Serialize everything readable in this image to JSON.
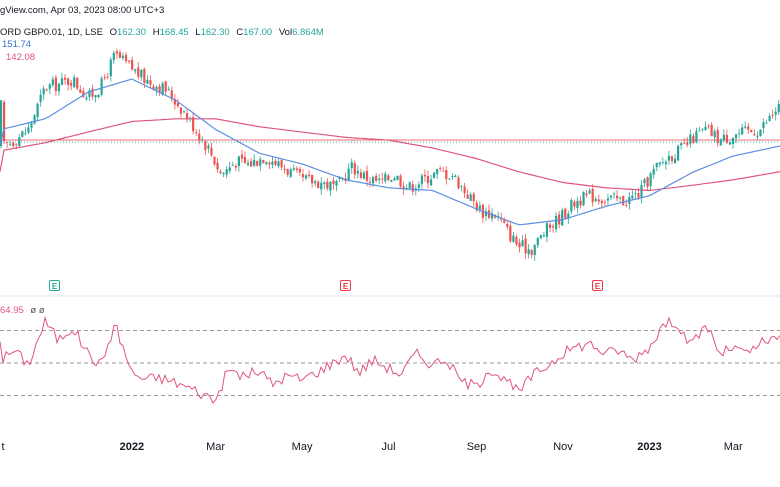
{
  "header": {
    "published": "gView.com, Apr 03, 2023 08:00 UTC+3",
    "symbol": "ORD GBP0.01, 1D, LSE",
    "open_label": "O",
    "open": "162.30",
    "high_label": "H",
    "high": "168.45",
    "low_label": "L",
    "low": "162.30",
    "close_label": "C",
    "close": "167.00",
    "vol_label": "Vol",
    "vol": "6.864M",
    "ma_fast": "151.74",
    "ma_slow": "142.08",
    "rsi_value": "64.95",
    "rsi_extra": "ø ø"
  },
  "events": [
    {
      "label": "E",
      "kind": "earnings"
    },
    {
      "label": "E",
      "kind": "dividend"
    },
    {
      "label": "E",
      "kind": "dividend"
    }
  ],
  "x_axis_labels": [
    {
      "text": "t",
      "bold": false
    },
    {
      "text": "2022",
      "bold": true
    },
    {
      "text": "Mar",
      "bold": false
    },
    {
      "text": "May",
      "bold": false
    },
    {
      "text": "Jul",
      "bold": false
    },
    {
      "text": "Sep",
      "bold": false
    },
    {
      "text": "Nov",
      "bold": false
    },
    {
      "text": "2023",
      "bold": true
    },
    {
      "text": "Mar",
      "bold": false
    }
  ],
  "colors": {
    "up": "#26a69a",
    "down": "#ef5350",
    "ma_fast": "#5b8fe0",
    "ma_slow": "#e0567a",
    "rsi": "#e0567a",
    "level": "#999999"
  },
  "chart_data": {
    "type": "candlestick",
    "price_axis": {
      "min": 102,
      "max": 200
    },
    "anchors": [
      [
        "2021-10-01",
        151
      ],
      [
        "2021-10-10",
        154
      ],
      [
        "2021-10-20",
        158
      ],
      [
        "2021-11-01",
        174
      ],
      [
        "2021-11-10",
        175
      ],
      [
        "2021-11-20",
        177
      ],
      [
        "2021-12-01",
        170
      ],
      [
        "2021-12-10",
        174
      ],
      [
        "2021-12-20",
        186
      ],
      [
        "2022-01-01",
        181
      ],
      [
        "2022-01-10",
        177
      ],
      [
        "2022-01-25",
        173
      ],
      [
        "2022-02-05",
        166
      ],
      [
        "2022-02-15",
        158
      ],
      [
        "2022-02-25",
        150
      ],
      [
        "2022-03-05",
        141
      ],
      [
        "2022-03-15",
        146
      ],
      [
        "2022-03-25",
        145
      ],
      [
        "2022-04-05",
        148
      ],
      [
        "2022-04-20",
        143
      ],
      [
        "2022-05-01",
        139
      ],
      [
        "2022-05-15",
        138
      ],
      [
        "2022-05-25",
        136
      ],
      [
        "2022-06-05",
        144
      ],
      [
        "2022-06-15",
        140
      ],
      [
        "2022-06-25",
        138
      ],
      [
        "2022-07-05",
        141
      ],
      [
        "2022-07-15",
        136
      ],
      [
        "2022-07-25",
        139
      ],
      [
        "2022-08-05",
        142
      ],
      [
        "2022-08-15",
        141
      ],
      [
        "2022-08-25",
        134
      ],
      [
        "2022-09-05",
        127
      ],
      [
        "2022-09-15",
        126
      ],
      [
        "2022-09-25",
        118
      ],
      [
        "2022-10-01",
        114
      ],
      [
        "2022-10-10",
        113
      ],
      [
        "2022-10-20",
        120
      ],
      [
        "2022-11-01",
        126
      ],
      [
        "2022-11-10",
        131
      ],
      [
        "2022-11-20",
        133
      ],
      [
        "2022-12-01",
        132
      ],
      [
        "2022-12-15",
        131
      ],
      [
        "2022-12-25",
        134
      ],
      [
        "2023-01-05",
        143
      ],
      [
        "2023-01-15",
        148
      ],
      [
        "2023-01-25",
        151
      ],
      [
        "2023-02-01",
        155
      ],
      [
        "2023-02-10",
        158
      ],
      [
        "2023-02-20",
        154
      ],
      [
        "2023-03-01",
        156
      ],
      [
        "2023-03-10",
        157
      ],
      [
        "2023-03-20",
        158
      ],
      [
        "2023-04-03",
        167
      ]
    ],
    "moving_average_fast": {
      "name": "151.74",
      "points": [
        [
          "2021-10-01",
          158
        ],
        [
          "2021-11-01",
          162
        ],
        [
          "2021-12-01",
          172
        ],
        [
          "2022-01-01",
          177
        ],
        [
          "2022-02-01",
          169
        ],
        [
          "2022-03-01",
          158
        ],
        [
          "2022-04-01",
          149
        ],
        [
          "2022-05-01",
          145
        ],
        [
          "2022-06-01",
          139
        ],
        [
          "2022-07-01",
          136
        ],
        [
          "2022-08-01",
          135
        ],
        [
          "2022-09-01",
          128
        ],
        [
          "2022-10-01",
          122
        ],
        [
          "2022-11-01",
          124
        ],
        [
          "2022-12-01",
          129
        ],
        [
          "2023-01-01",
          133
        ],
        [
          "2023-02-01",
          142
        ],
        [
          "2023-03-01",
          148
        ],
        [
          "2023-04-03",
          151.74
        ]
      ]
    },
    "moving_average_slow": {
      "name": "142.08",
      "points": [
        [
          "2021-10-01",
          150
        ],
        [
          "2021-11-01",
          153
        ],
        [
          "2021-12-01",
          157
        ],
        [
          "2022-01-01",
          161
        ],
        [
          "2022-02-01",
          162
        ],
        [
          "2022-03-01",
          162
        ],
        [
          "2022-04-01",
          159
        ],
        [
          "2022-05-01",
          157
        ],
        [
          "2022-06-01",
          155
        ],
        [
          "2022-07-01",
          154
        ],
        [
          "2022-08-01",
          151
        ],
        [
          "2022-09-01",
          147
        ],
        [
          "2022-10-01",
          142
        ],
        [
          "2022-11-01",
          138
        ],
        [
          "2022-12-01",
          136
        ],
        [
          "2023-01-01",
          135
        ],
        [
          "2023-02-01",
          137
        ],
        [
          "2023-03-01",
          139
        ],
        [
          "2023-04-03",
          142.08
        ]
      ]
    },
    "horizontal_level": 154,
    "x_axis_ticks": [
      "2021-10-01",
      "2022-01-01",
      "2022-03-01",
      "2022-05-01",
      "2022-07-01",
      "2022-09-01",
      "2022-11-01",
      "2023-01-01",
      "2023-03-01"
    ],
    "x_range": [
      "2021-09-30",
      "2023-04-03"
    ],
    "events": [
      {
        "date": "2021-12-01"
      },
      {
        "date": "2022-05-20"
      },
      {
        "date": "2022-11-25"
      }
    ],
    "rsi": {
      "levels": [
        70,
        50,
        30
      ],
      "y_range": [
        10,
        90
      ],
      "anchors": [
        [
          "2021-10-01",
          52
        ],
        [
          "2021-10-10",
          58
        ],
        [
          "2021-10-20",
          49
        ],
        [
          "2021-11-01",
          76
        ],
        [
          "2021-11-10",
          64
        ],
        [
          "2021-11-20",
          72
        ],
        [
          "2021-12-01",
          56
        ],
        [
          "2021-12-10",
          48
        ],
        [
          "2021-12-20",
          74
        ],
        [
          "2022-01-01",
          44
        ],
        [
          "2022-01-10",
          40
        ],
        [
          "2022-01-20",
          41
        ],
        [
          "2022-02-01",
          38
        ],
        [
          "2022-02-15",
          33
        ],
        [
          "2022-03-01",
          27
        ],
        [
          "2022-03-10",
          46
        ],
        [
          "2022-03-20",
          42
        ],
        [
          "2022-04-01",
          45
        ],
        [
          "2022-04-10",
          37
        ],
        [
          "2022-04-20",
          42
        ],
        [
          "2022-05-01",
          40
        ],
        [
          "2022-05-15",
          46
        ],
        [
          "2022-06-01",
          55
        ],
        [
          "2022-06-10",
          44
        ],
        [
          "2022-06-20",
          52
        ],
        [
          "2022-07-01",
          47
        ],
        [
          "2022-07-10",
          43
        ],
        [
          "2022-07-20",
          56
        ],
        [
          "2022-08-01",
          49
        ],
        [
          "2022-08-10",
          53
        ],
        [
          "2022-08-20",
          40
        ],
        [
          "2022-09-01",
          35
        ],
        [
          "2022-09-10",
          47
        ],
        [
          "2022-09-20",
          40
        ],
        [
          "2022-10-01",
          32
        ],
        [
          "2022-10-10",
          42
        ],
        [
          "2022-10-20",
          48
        ],
        [
          "2022-11-01",
          56
        ],
        [
          "2022-11-10",
          60
        ],
        [
          "2022-11-20",
          62
        ],
        [
          "2022-12-01",
          56
        ],
        [
          "2022-12-10",
          58
        ],
        [
          "2022-12-20",
          52
        ],
        [
          "2023-01-01",
          60
        ],
        [
          "2023-01-10",
          73
        ],
        [
          "2023-01-20",
          76
        ],
        [
          "2023-01-30",
          60
        ],
        [
          "2023-02-10",
          74
        ],
        [
          "2023-02-20",
          55
        ],
        [
          "2023-03-01",
          60
        ],
        [
          "2023-03-10",
          55
        ],
        [
          "2023-03-20",
          62
        ],
        [
          "2023-04-03",
          64.95
        ]
      ]
    }
  }
}
